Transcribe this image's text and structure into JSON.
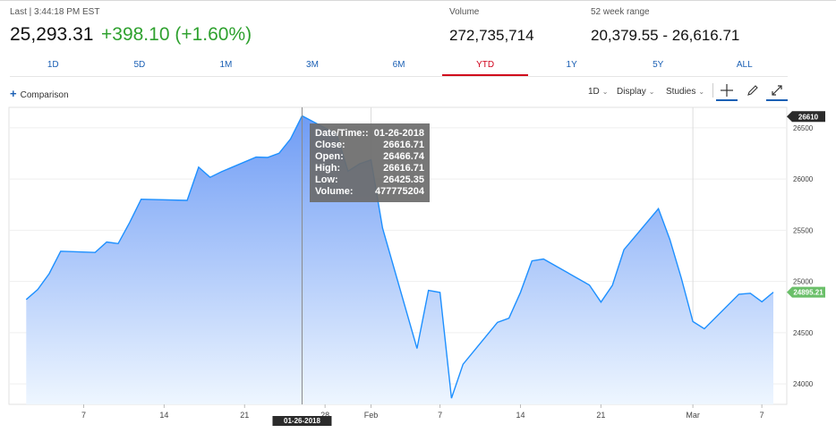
{
  "quote": {
    "last_line": "Last | 3:44:18 PM EST",
    "price": "25,293.31",
    "change": "+398.10 (+1.60%)",
    "volume_label": "Volume",
    "volume_value": "272,735,714",
    "range_label": "52 week range",
    "range_value": "20,379.55 - 26,616.71",
    "change_color": "#2fa12f"
  },
  "ranges": [
    {
      "label": "1D",
      "active": false
    },
    {
      "label": "5D",
      "active": false
    },
    {
      "label": "1M",
      "active": false
    },
    {
      "label": "3M",
      "active": false
    },
    {
      "label": "6M",
      "active": false
    },
    {
      "label": "YTD",
      "active": true
    },
    {
      "label": "1Y",
      "active": false
    },
    {
      "label": "5Y",
      "active": false
    },
    {
      "label": "ALL",
      "active": false
    }
  ],
  "toolbar": {
    "comparison_label": "Comparison",
    "interval_label": "1D",
    "display_label": "Display",
    "studies_label": "Studies",
    "icons": [
      "plus-icon",
      "chevron-down-icon",
      "crosshair-icon",
      "pencil-icon",
      "expand-icon"
    ]
  },
  "chart_data": {
    "type": "area",
    "x": [
      "2018-01-02",
      "2018-01-03",
      "2018-01-04",
      "2018-01-05",
      "2018-01-08",
      "2018-01-09",
      "2018-01-10",
      "2018-01-11",
      "2018-01-12",
      "2018-01-16",
      "2018-01-17",
      "2018-01-18",
      "2018-01-19",
      "2018-01-22",
      "2018-01-23",
      "2018-01-24",
      "2018-01-25",
      "2018-01-26",
      "2018-01-29",
      "2018-01-30",
      "2018-01-31",
      "2018-02-01",
      "2018-02-02",
      "2018-02-05",
      "2018-02-06",
      "2018-02-07",
      "2018-02-08",
      "2018-02-09",
      "2018-02-12",
      "2018-02-13",
      "2018-02-14",
      "2018-02-15",
      "2018-02-16",
      "2018-02-20",
      "2018-02-21",
      "2018-02-22",
      "2018-02-23",
      "2018-02-26",
      "2018-02-27",
      "2018-02-28",
      "2018-03-01",
      "2018-03-02",
      "2018-03-05",
      "2018-03-06",
      "2018-03-07",
      "2018-03-08"
    ],
    "values": [
      24824,
      24922,
      25075,
      25295,
      25283,
      25385,
      25370,
      25575,
      25803,
      25792,
      26116,
      26017,
      26072,
      26214,
      26211,
      26252,
      26392,
      26617,
      26440,
      26077,
      26149,
      26187,
      25521,
      24346,
      24913,
      24893,
      23860,
      24191,
      24601,
      24641,
      24894,
      25201,
      25219,
      24965,
      24798,
      24963,
      25310,
      25710,
      25410,
      25029,
      24609,
      24538,
      24875,
      24885,
      24802,
      24895
    ],
    "x_ticks": [
      "7",
      "14",
      "21",
      "28",
      "Feb",
      "7",
      "14",
      "21",
      "Mar",
      "7"
    ],
    "y_ticks": [
      24000,
      24500,
      25000,
      25500,
      26000,
      26500
    ],
    "y_tick_labels": [
      "24000",
      "24500",
      "25000",
      "25500",
      "26000",
      "26500"
    ],
    "ylim": [
      23800,
      26700
    ],
    "grid": true,
    "last_value_tag": "24895.21",
    "crosshair_value_tag": "26610",
    "crosshair_date_tag": "01-26-2018",
    "line_color": "#1e90ff",
    "fill_top_color": "#6f9cf5",
    "fill_bottom_color": "#eef6ff",
    "last_tag_color": "#6abf69",
    "tooltip": {
      "rows": [
        {
          "label": "Date/Time::",
          "value": "01-26-2018"
        },
        {
          "label": "Close:",
          "value": "26616.71"
        },
        {
          "label": "Open:",
          "value": "26466.74"
        },
        {
          "label": "High:",
          "value": "26616.71"
        },
        {
          "label": "Low:",
          "value": "26425.35"
        },
        {
          "label": "Volume:",
          "value": "477775204"
        }
      ]
    }
  }
}
